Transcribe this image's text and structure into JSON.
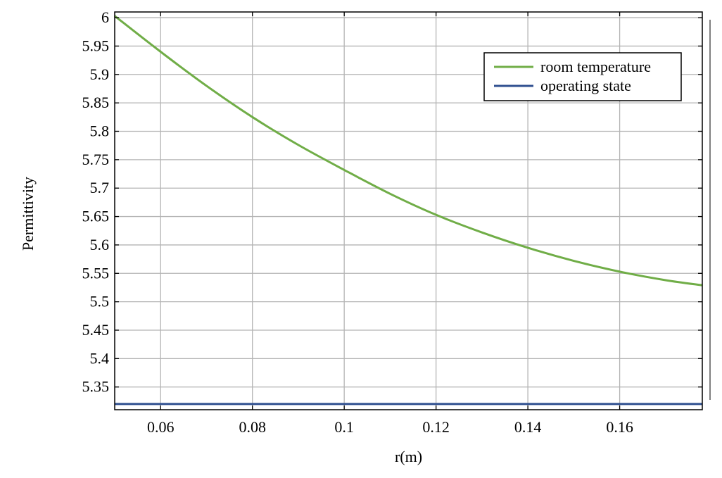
{
  "chart_data": {
    "type": "line",
    "title": "",
    "xlabel": "r(m)",
    "ylabel": "Permittivity",
    "xlim": [
      0.05,
      0.178
    ],
    "ylim": [
      5.31,
      6.01
    ],
    "xticks": [
      0.06,
      0.08,
      0.1,
      0.12,
      0.14,
      0.16
    ],
    "xtick_labels": [
      "0.06",
      "0.08",
      "0.1",
      "0.12",
      "0.14",
      "0.16"
    ],
    "yticks": [
      5.35,
      5.4,
      5.45,
      5.5,
      5.55,
      5.6,
      5.65,
      5.7,
      5.75,
      5.8,
      5.85,
      5.9,
      5.95,
      6.0
    ],
    "ytick_labels": [
      "5.35",
      "5.4",
      "5.45",
      "5.5",
      "5.55",
      "5.6",
      "5.65",
      "5.7",
      "5.75",
      "5.8",
      "5.85",
      "5.9",
      "5.95",
      "6"
    ],
    "grid": true,
    "legend_position": "top-right",
    "series": [
      {
        "name": "room temperature",
        "color": "#70ad47",
        "x": [
          0.05,
          0.06,
          0.07,
          0.08,
          0.09,
          0.1,
          0.11,
          0.12,
          0.13,
          0.14,
          0.15,
          0.16,
          0.17,
          0.178
        ],
        "y": [
          6.003,
          5.94,
          5.88,
          5.825,
          5.776,
          5.732,
          5.69,
          5.653,
          5.622,
          5.595,
          5.572,
          5.553,
          5.538,
          5.529
        ]
      },
      {
        "name": "operating state",
        "color": "#2f4f8f",
        "x": [
          0.05,
          0.178
        ],
        "y": [
          5.32,
          5.32
        ]
      }
    ]
  }
}
